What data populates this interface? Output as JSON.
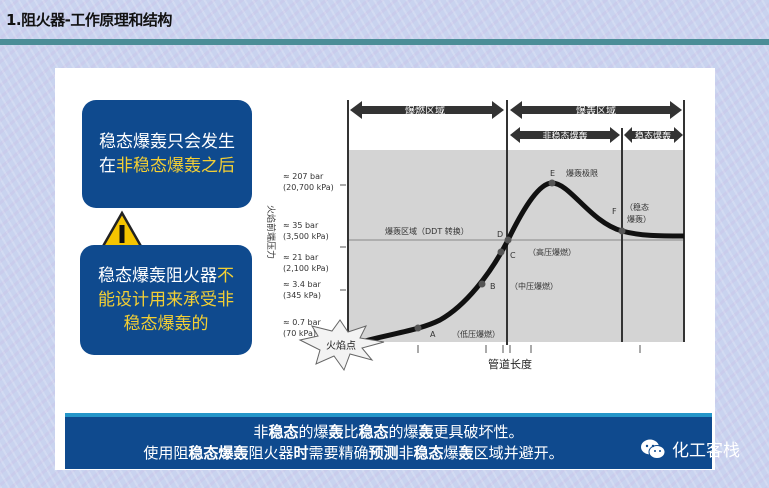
{
  "header": {
    "title": "1.阻火器-工作原理和结构"
  },
  "callouts": [
    {
      "line1": "稳态爆轰只会发生",
      "line2_plain": "在",
      "line2_highlight": "非稳态爆轰之后"
    },
    {
      "line1_plain": "稳态爆轰阻火器",
      "line1_highlight": "不",
      "line2": "能设计用来承受非",
      "line3": "稳态爆轰的"
    }
  ],
  "warning_icon": "warning-triangle-icon",
  "diagram": {
    "regions_top": [
      "爆燃区域",
      "爆轰区域"
    ],
    "regions_sub": [
      "非稳态爆轰",
      "稳态爆轰"
    ],
    "y_axis_label": "火焰前端压力",
    "x_axis_label": "管道长度",
    "y_ticks": [
      {
        "bar": "≈ 207 bar",
        "kpa": "(20,700 kPa)"
      },
      {
        "bar": "≈ 35 bar",
        "kpa": "(3,500 kPa)"
      },
      {
        "bar": "≈ 21 bar",
        "kpa": "(2,100 kPa)"
      },
      {
        "bar": "≈ 3.4 bar",
        "kpa": "(345 kPa)"
      },
      {
        "bar": "≈ 0.7 bar",
        "kpa": "(70 kPa)"
      }
    ],
    "ddt_label": "爆轰区域（DDT 转换）",
    "points": [
      {
        "id": "A",
        "note": "（低压爆燃）"
      },
      {
        "id": "B",
        "note": "（中压爆燃）"
      },
      {
        "id": "C",
        "note": "（高压爆燃）"
      },
      {
        "id": "D",
        "note": ""
      },
      {
        "id": "E",
        "note": "爆轰极限"
      },
      {
        "id": "F",
        "note1": "（稳态",
        "note2": "爆轰）"
      }
    ],
    "ignition_label": "火焰点",
    "colors": {
      "plot_bg": "#d4d4d4",
      "curve": "#111111"
    }
  },
  "banner": {
    "l1": [
      "非",
      "稳态",
      "的爆",
      "轰",
      "比",
      "稳态",
      "的爆",
      "轰",
      "更具破坏性。"
    ],
    "l2": [
      "使用阻",
      "稳态爆轰",
      "阻火器",
      "时",
      "需要精确",
      "预测",
      "非",
      "稳态",
      "爆",
      "轰",
      "区域并避开。"
    ]
  },
  "watermark": {
    "text": "化工客栈",
    "icon": "wechat-icon"
  },
  "colors": {
    "box_blue": "#0f4a8e",
    "highlight": "#f3cf34",
    "rule": "#4b8d97"
  }
}
